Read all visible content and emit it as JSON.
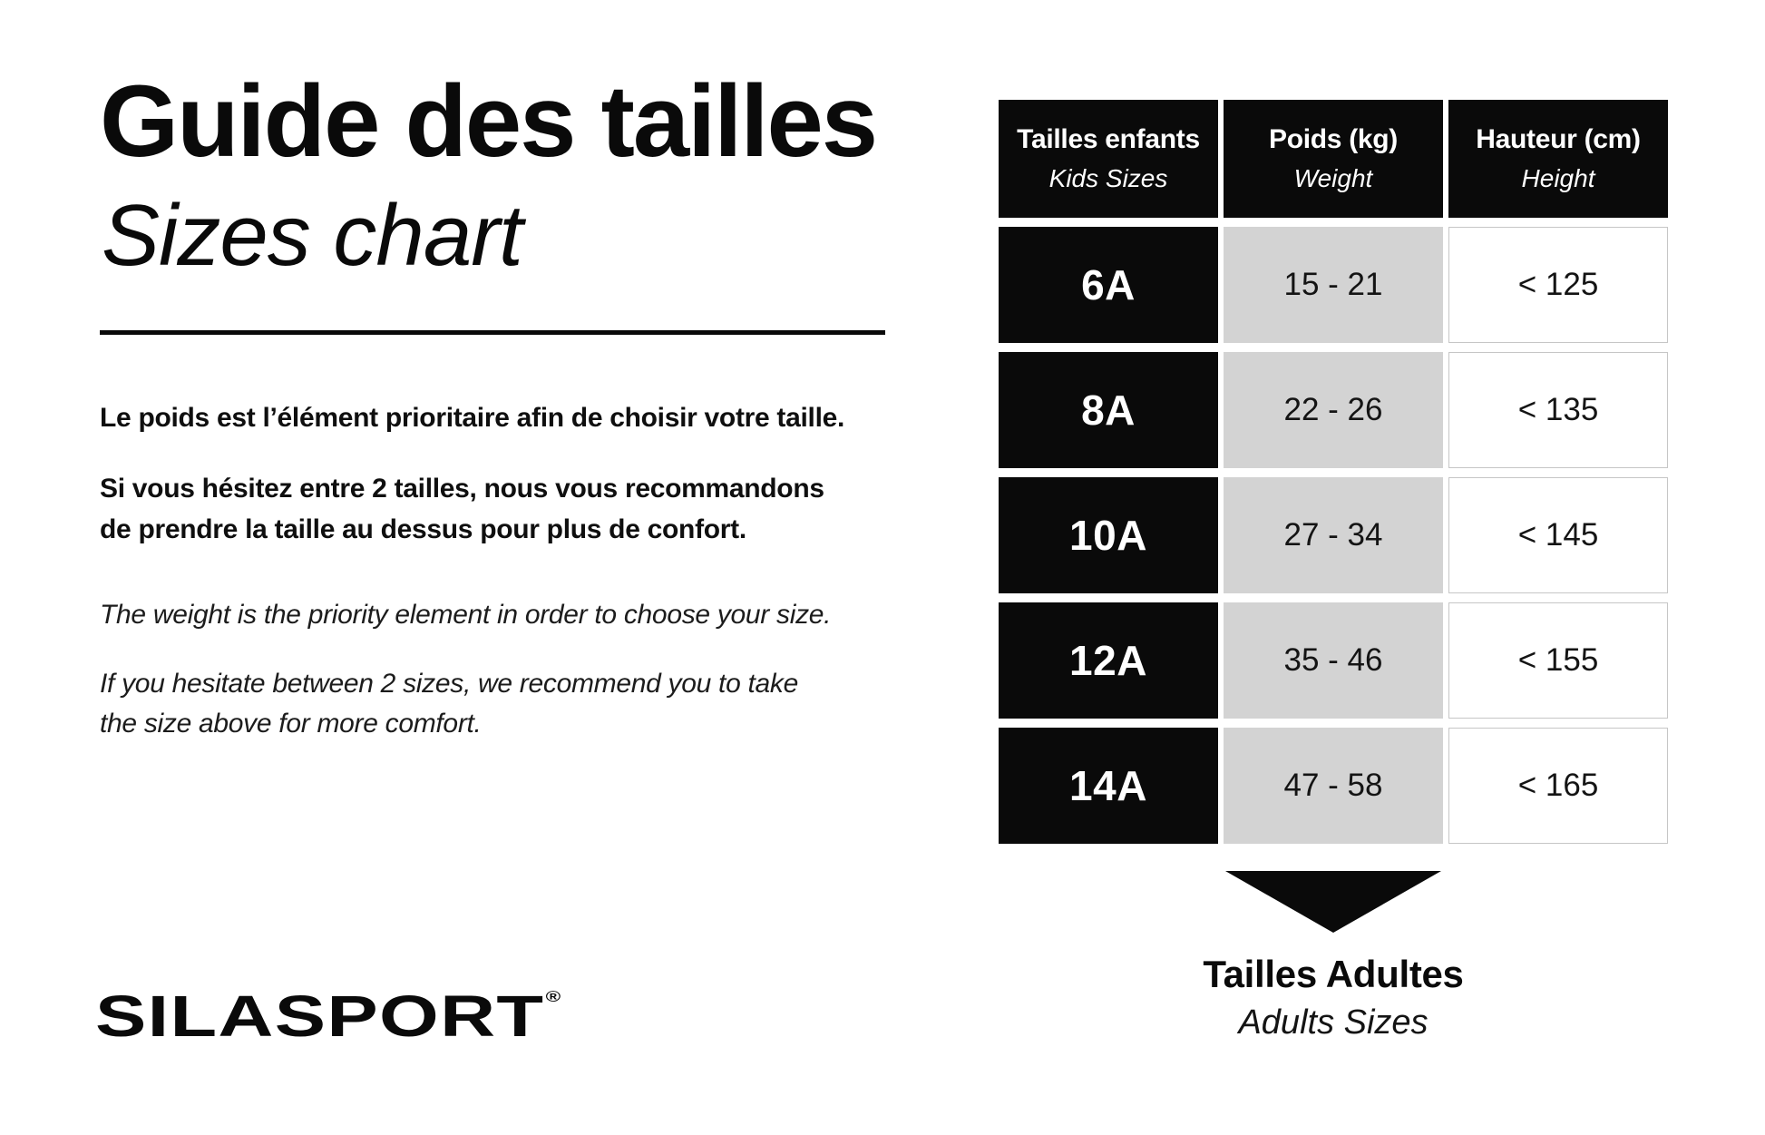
{
  "header": {
    "title_fr": "Guide des tailles",
    "title_en": "Sizes chart"
  },
  "intro": {
    "fr_1": "Le poids est l’élément prioritaire afin de choisir votre taille.",
    "fr_2": "Si vous hésitez entre 2 tailles, nous vous recommandons\nde prendre la taille au dessus pour plus de confort.",
    "en_1": "The weight is the priority element in order to choose your size.",
    "en_2": "If you hesitate between 2 sizes, we recommend you to take\nthe size above for more comfort."
  },
  "table": {
    "columns": [
      {
        "label_fr": "Tailles enfants",
        "label_en": "Kids Sizes"
      },
      {
        "label_fr": "Poids (kg)",
        "label_en": "Weight"
      },
      {
        "label_fr": "Hauteur (cm)",
        "label_en": "Height"
      }
    ],
    "rows": [
      {
        "size": "6A",
        "weight": "15 - 21",
        "height": "< 125"
      },
      {
        "size": "8A",
        "weight": "22 - 26",
        "height": "< 135"
      },
      {
        "size": "10A",
        "weight": "27 - 34",
        "height": "< 145"
      },
      {
        "size": "12A",
        "weight": "35 - 46",
        "height": "< 155"
      },
      {
        "size": "14A",
        "weight": "47 - 58",
        "height": "< 165"
      }
    ]
  },
  "footer": {
    "adults_fr": "Tailles Adultes",
    "adults_en": "Adults Sizes"
  },
  "brand": {
    "name": "SILASPORT",
    "registered": "®"
  },
  "colors": {
    "black": "#0a0a0a",
    "cell_gray": "#d3d3d3",
    "white_cell_border": "#c6c6c6",
    "background": "#ffffff"
  }
}
